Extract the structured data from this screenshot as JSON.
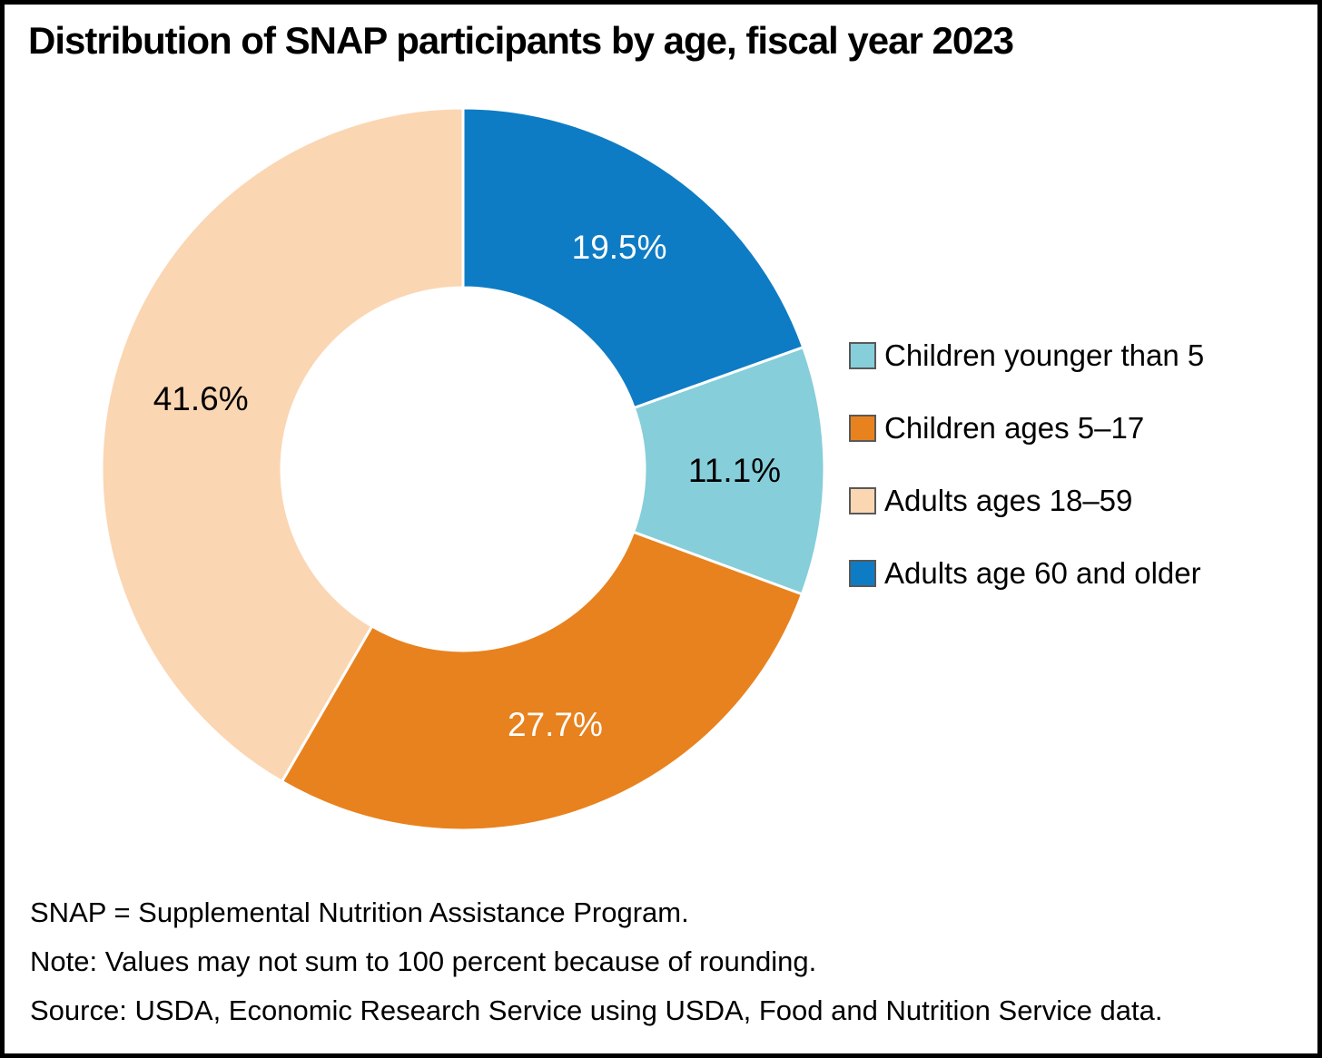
{
  "title": "Distribution of SNAP participants by age, fiscal year 2023",
  "notes": {
    "line1": "SNAP = Supplemental Nutrition Assistance Program.",
    "line2": "Note: Values may not sum to 100 percent because of rounding.",
    "line3": "Source: USDA, Economic Research Service using USDA, Food and Nutrition Service data."
  },
  "colors": {
    "background": "#ffffff",
    "frame_border": "#000000",
    "separator": "#ffffff",
    "legend_swatch_border": "#595959",
    "text": "#000000"
  },
  "chart_data": {
    "type": "pie",
    "subtype": "donut",
    "title": "Distribution of SNAP participants by age, fiscal year 2023",
    "legend_position": "right",
    "start_rule": "last slice ends at 12 o'clock, clockwise",
    "slices": [
      {
        "label": "Children younger than 5",
        "value": 11.1,
        "display": "11.1%",
        "color": "#85CEDA",
        "label_color": "#000000"
      },
      {
        "label": "Children ages 5–17",
        "value": 27.7,
        "display": "27.7%",
        "color": "#E8821E",
        "label_color": "#ffffff"
      },
      {
        "label": "Adults ages 18–59",
        "value": 41.6,
        "display": "41.6%",
        "color": "#FBD6B3",
        "label_color": "#000000"
      },
      {
        "label": "Adults age 60 and older",
        "value": 19.5,
        "display": "19.5%",
        "color": "#0E7CC4",
        "label_color": "#ffffff"
      }
    ]
  }
}
